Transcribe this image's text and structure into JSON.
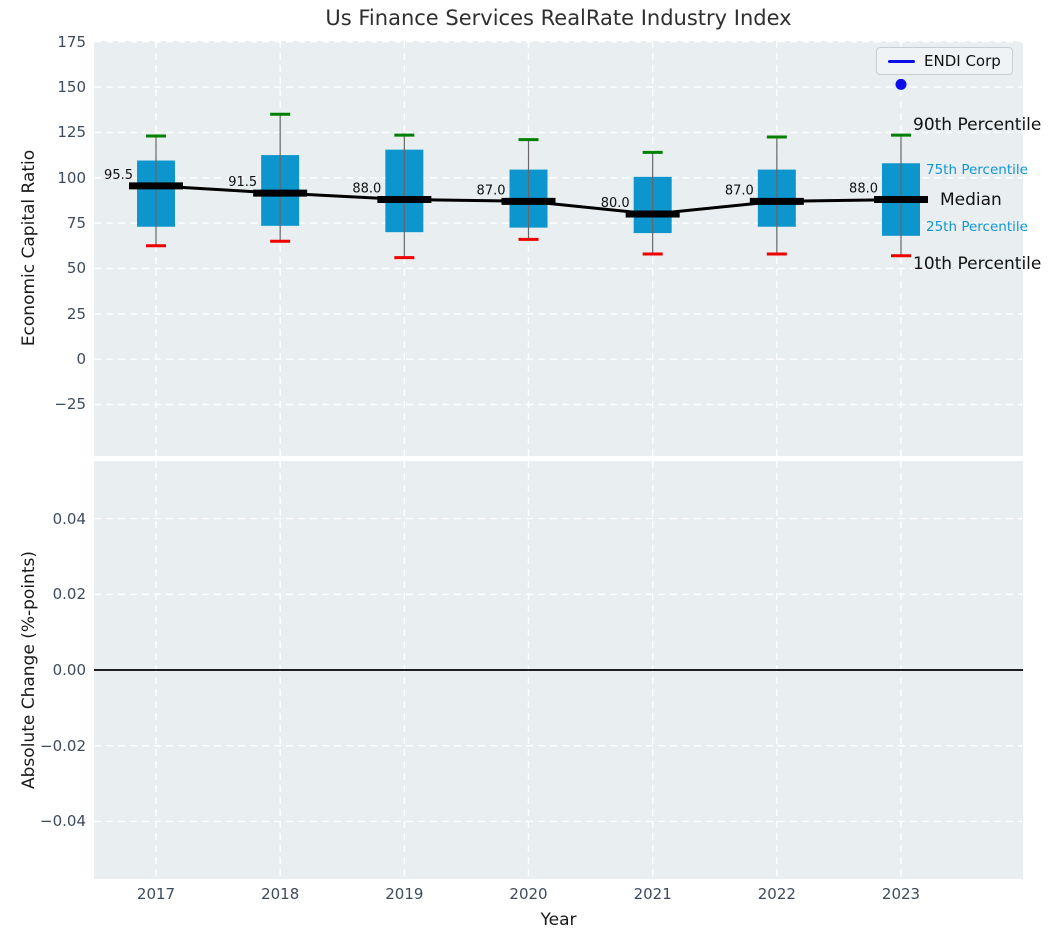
{
  "title": "Us Finance Services RealRate Industry Index",
  "legend": {
    "label": "ENDI Corp"
  },
  "annotations": {
    "p90": "90th Percentile",
    "p75": "75th Percentile",
    "median": "Median",
    "p25": "25th Percentile",
    "p10": "10th Percentile"
  },
  "colors": {
    "box": "#0d96ce",
    "median_line": "#000000",
    "whisker": "#666666",
    "cap_high": "#008000",
    "cap_low": "#ee0000",
    "endi_point": "#0d0de8",
    "panel_background": "#e9eef0",
    "grid": "#ffffff",
    "tick_text": "#3d4b5c",
    "annotation_percentile": "#1296d2"
  },
  "chart_data": {
    "type": "boxplot",
    "title": "Us Finance Services RealRate Industry Index",
    "xlabel": "Year",
    "categories": [
      "2017",
      "2018",
      "2019",
      "2020",
      "2021",
      "2022",
      "2023"
    ],
    "legend_entries": [
      "ENDI Corp"
    ],
    "legend_position": "upper right",
    "grid": true,
    "top_panel": {
      "ylabel": "Economic Capital Ratio",
      "ylim": [
        -53.4,
        175.4
      ],
      "yticks": [
        175,
        150,
        125,
        100,
        75,
        50,
        25,
        0,
        -25
      ],
      "ytick_labels": [
        "175",
        "150",
        "125",
        "100",
        "75",
        "50",
        "25",
        "0",
        "−25"
      ],
      "boxes": [
        {
          "year": "2017",
          "p10": 62.5,
          "p25": 73.0,
          "median": 95.5,
          "p75": 109.5,
          "p90": 123.0
        },
        {
          "year": "2018",
          "p10": 65.0,
          "p25": 73.5,
          "median": 91.5,
          "p75": 112.5,
          "p90": 135.0
        },
        {
          "year": "2019",
          "p10": 56.0,
          "p25": 70.0,
          "median": 88.0,
          "p75": 115.5,
          "p90": 123.5
        },
        {
          "year": "2020",
          "p10": 66.0,
          "p25": 72.5,
          "median": 87.0,
          "p75": 104.5,
          "p90": 121.0
        },
        {
          "year": "2021",
          "p10": 58.0,
          "p25": 69.5,
          "median": 80.0,
          "p75": 100.5,
          "p90": 114.0
        },
        {
          "year": "2022",
          "p10": 58.0,
          "p25": 73.0,
          "median": 87.0,
          "p75": 104.5,
          "p90": 122.5
        },
        {
          "year": "2023",
          "p10": 57.0,
          "p25": 68.0,
          "median": 88.0,
          "p75": 108.0,
          "p90": 123.5
        }
      ],
      "median_labels": [
        "95.5",
        "91.5",
        "88.0",
        "87.0",
        "80.0",
        "87.0",
        "88.0"
      ],
      "median_series": [
        95.5,
        91.5,
        88.0,
        87.0,
        80.0,
        87.0,
        88.0
      ],
      "endi_corp_points": [
        {
          "year": "2023",
          "value": 151.5
        }
      ]
    },
    "bottom_panel": {
      "ylabel": "Absolute Change (%-points)",
      "ylim": [
        -0.0552,
        0.0552
      ],
      "yticks": [
        0.04,
        0.02,
        0.0,
        -0.02,
        -0.04
      ],
      "ytick_labels": [
        "0.04",
        "0.02",
        "0.00",
        "−0.02",
        "−0.04"
      ],
      "zero_line": 0.0,
      "series": []
    }
  }
}
